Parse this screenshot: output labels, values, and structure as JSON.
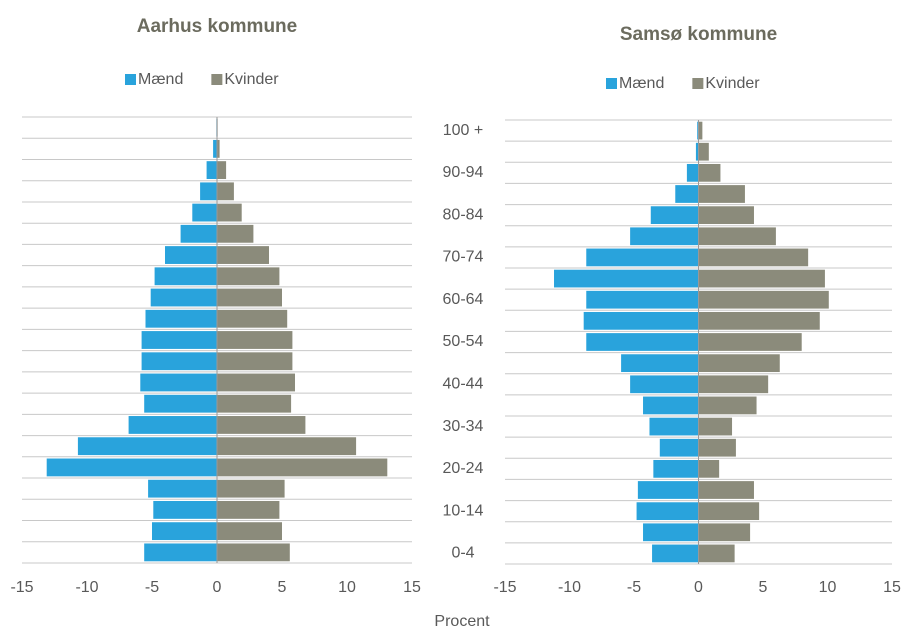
{
  "x_label": "Procent",
  "chart_data": [
    {
      "type": "bar",
      "title": "Aarhus kommune",
      "series": [
        {
          "name": "Mænd",
          "color": "#29a3dc",
          "values": [
            -5.6,
            -5.0,
            -4.9,
            -5.3,
            -13.1,
            -10.7,
            -6.8,
            -5.6,
            -5.9,
            -5.8,
            -5.8,
            -5.5,
            -5.1,
            -4.8,
            -4.0,
            -2.8,
            -1.9,
            -1.3,
            -0.8,
            -0.3,
            -0.05
          ]
        },
        {
          "name": "Kvinder",
          "color": "#8b8b7b",
          "values": [
            5.6,
            5.0,
            4.8,
            5.2,
            13.1,
            10.7,
            6.8,
            5.7,
            6.0,
            5.8,
            5.8,
            5.4,
            5.0,
            4.8,
            4.0,
            2.8,
            1.9,
            1.3,
            0.7,
            0.2,
            0.05
          ]
        }
      ],
      "xlim": [
        -15,
        15
      ],
      "xticks": [
        -15,
        -10,
        -5,
        0,
        5,
        10,
        15
      ]
    },
    {
      "type": "bar",
      "title": "Samsø kommune",
      "categories": [
        "0-4",
        null,
        "10-14",
        null,
        "20-24",
        null,
        "30-34",
        null,
        "40-44",
        null,
        "50-54",
        null,
        "60-64",
        null,
        "70-74",
        null,
        "80-84",
        null,
        "90-94",
        null,
        "100 +"
      ],
      "series": [
        {
          "name": "Mænd",
          "color": "#29a3dc",
          "values": [
            -3.6,
            -4.3,
            -4.8,
            -4.7,
            -3.5,
            -3.0,
            -3.8,
            -4.3,
            -5.3,
            -6.0,
            -8.7,
            -8.9,
            -8.7,
            -11.2,
            -8.7,
            -5.3,
            -3.7,
            -1.8,
            -0.9,
            -0.2,
            -0.1
          ]
        },
        {
          "name": "Kvinder",
          "color": "#8b8b7b",
          "values": [
            2.8,
            4.0,
            4.7,
            4.3,
            1.6,
            2.9,
            2.6,
            4.5,
            5.4,
            6.3,
            8.0,
            9.4,
            10.1,
            9.8,
            8.5,
            6.0,
            4.3,
            3.6,
            1.7,
            0.8,
            0.3
          ]
        }
      ],
      "xlim": [
        -15,
        15
      ],
      "xticks": [
        -15,
        -10,
        -5,
        0,
        5,
        10,
        15
      ]
    }
  ]
}
